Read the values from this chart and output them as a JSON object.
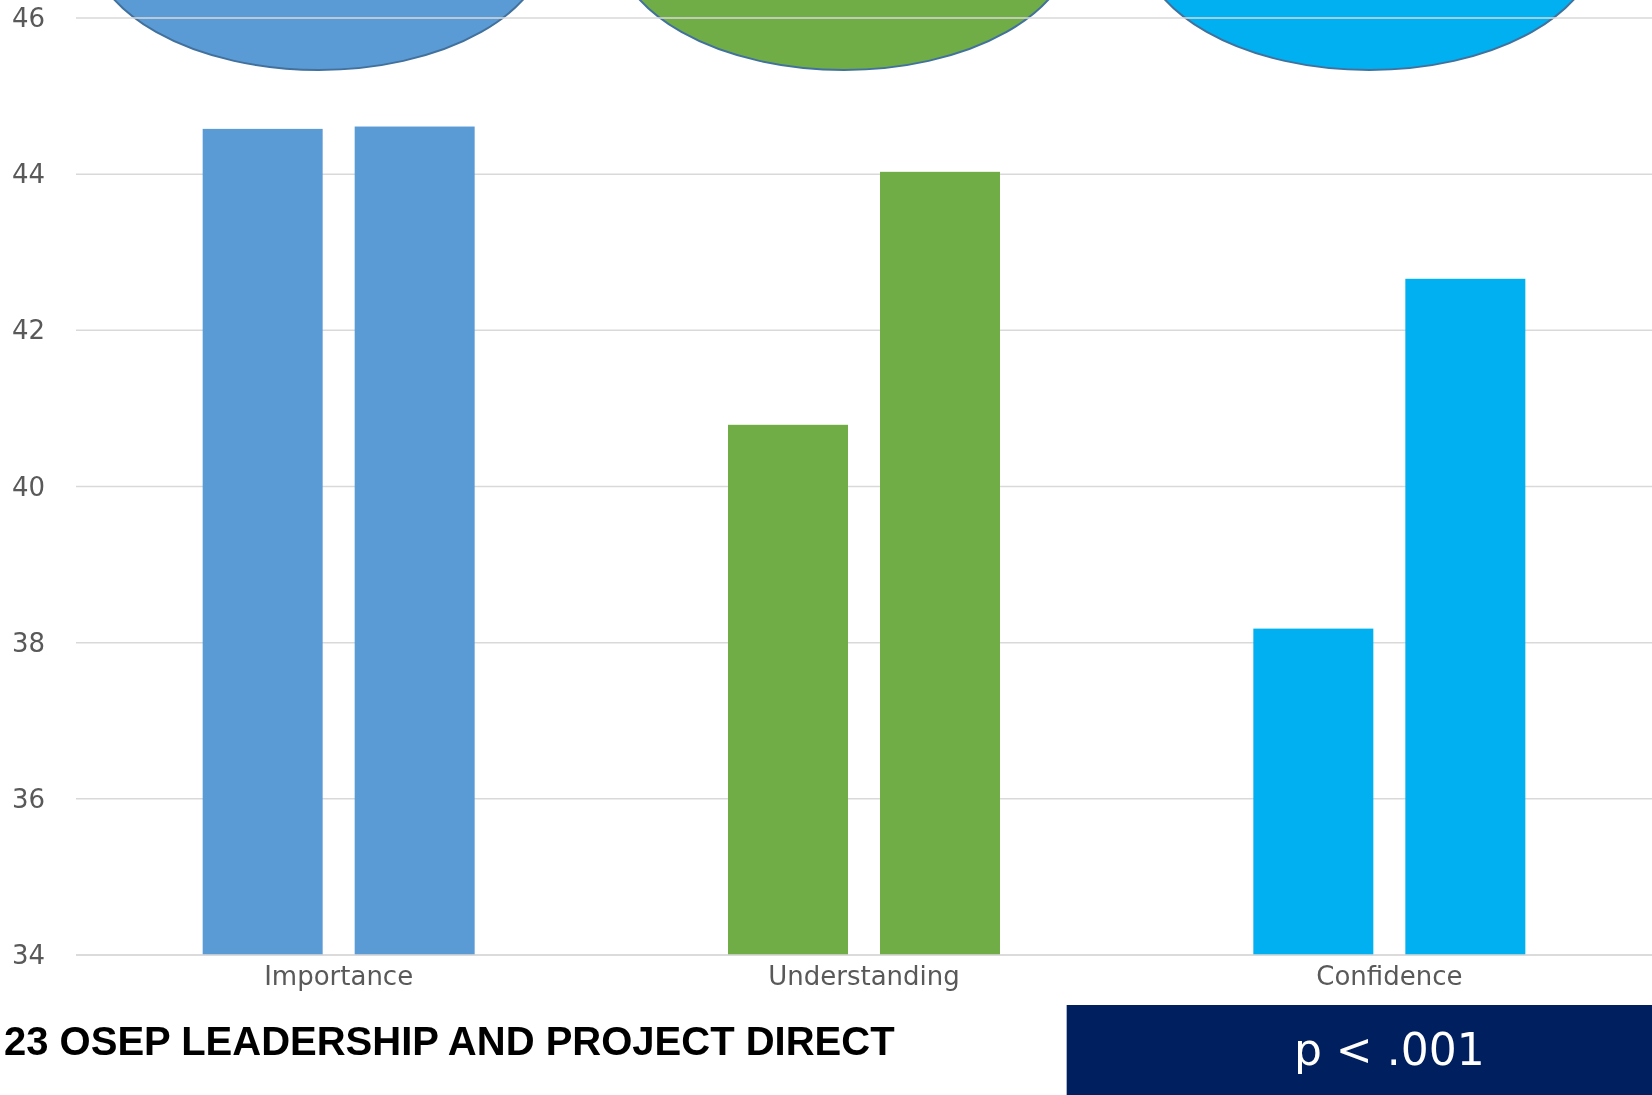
{
  "chart_data": {
    "type": "bar",
    "categories": [
      "Importance",
      "Understanding",
      "Confidence"
    ],
    "series": [
      {
        "colors": [
          "#5b9bd5",
          "#70ad47",
          "#00b0f0"
        ],
        "values": [
          44.58,
          40.79,
          38.18
        ]
      },
      {
        "colors": [
          "#5b9bd5",
          "#70ad47",
          "#00b0f0"
        ],
        "values": [
          44.61,
          44.03,
          42.66
        ]
      }
    ],
    "ylim": [
      34,
      46
    ],
    "yticks": [
      34,
      36,
      38,
      40,
      42,
      44,
      46
    ],
    "grid": "y",
    "annotations": [
      "p < .001",
      "23 OSEP LEADERSHIP AND PROJECT DIRECT"
    ]
  }
}
